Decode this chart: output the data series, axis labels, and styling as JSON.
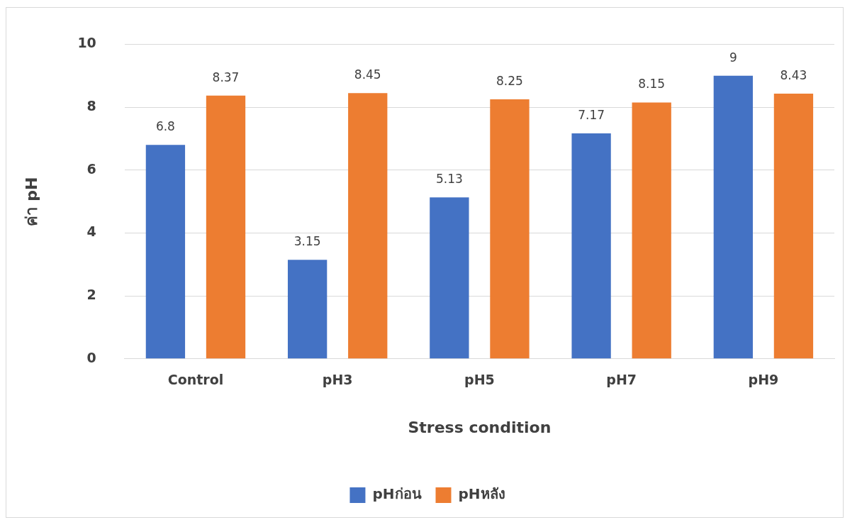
{
  "chart_data": {
    "type": "bar",
    "xlabel": "Stress condition",
    "ylabel": "ค่า pH",
    "categories": [
      "Control",
      "pH3",
      "pH5",
      "pH7",
      "pH9"
    ],
    "series": [
      {
        "name": "pHก่อน",
        "color": "#4472c4",
        "values": [
          6.8,
          3.15,
          5.13,
          7.17,
          9
        ]
      },
      {
        "name": "pHหลัง",
        "color": "#ed7d31",
        "values": [
          8.37,
          8.45,
          8.25,
          8.15,
          8.43
        ]
      }
    ],
    "ylim": [
      0,
      10
    ],
    "yticks": [
      0,
      2,
      4,
      6,
      8,
      10
    ],
    "grid": "y",
    "legend": "bottom",
    "data_labels": true
  }
}
